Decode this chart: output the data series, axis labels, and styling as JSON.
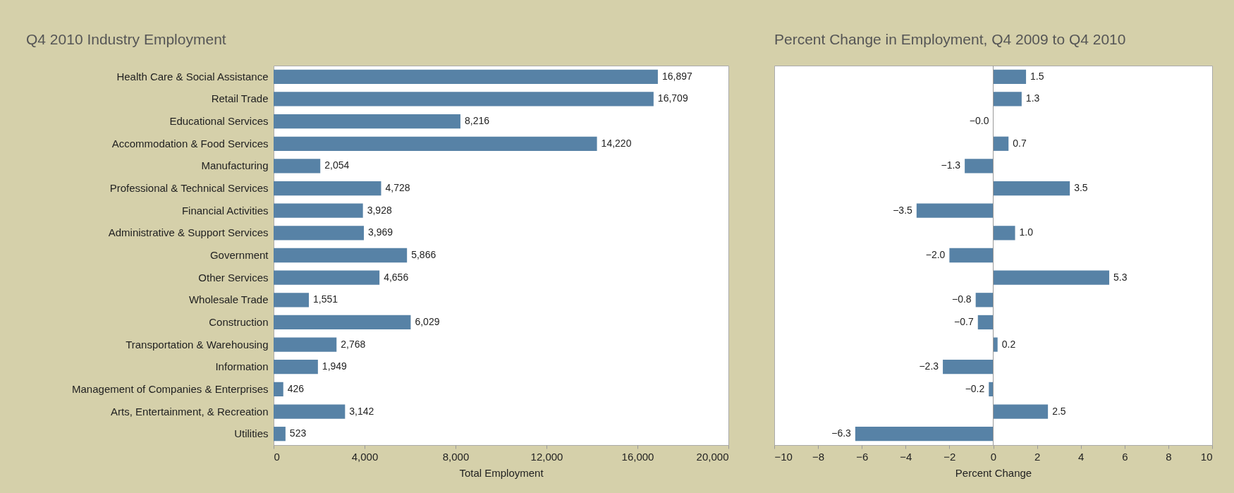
{
  "chart_data": [
    {
      "type": "bar",
      "orientation": "horizontal",
      "title": "Q4 2010 Industry Employment",
      "xlabel": "Total Employment",
      "categories": [
        "Health Care & Social Assistance",
        "Retail Trade",
        "Educational Services",
        "Accommodation & Food Services",
        "Manufacturing",
        "Professional & Technical Services",
        "Financial Activities",
        "Administrative & Support Services",
        "Government",
        "Other Services",
        "Wholesale Trade",
        "Construction",
        "Transportation & Warehousing",
        "Information",
        "Management of Companies & Enterprises",
        "Arts, Entertainment, & Recreation",
        "Utilities"
      ],
      "values": [
        16897,
        16709,
        8216,
        14220,
        2054,
        4728,
        3928,
        3969,
        5866,
        4656,
        1551,
        6029,
        2768,
        1949,
        426,
        3142,
        523
      ],
      "value_labels": [
        "16,897",
        "16,709",
        "8,216",
        "14,220",
        "2,054",
        "4,728",
        "3,928",
        "3,969",
        "5,866",
        "4,656",
        "1,551",
        "6,029",
        "2,768",
        "1,949",
        "426",
        "3,142",
        "523"
      ],
      "color": "#5782a6",
      "xlim": [
        0,
        20000
      ],
      "xticks": [
        0,
        {
          "value": 4000,
          "label": "4,000"
        },
        {
          "value": 8000,
          "label": "8,000"
        },
        {
          "value": 12000,
          "label": "12,000"
        },
        {
          "value": 16000,
          "label": "16,000"
        },
        {
          "value": 20000,
          "label": "20,000"
        }
      ]
    },
    {
      "type": "bar",
      "orientation": "horizontal",
      "title": "Percent Change in Employment, Q4 2009 to Q4 2010",
      "xlabel": "Percent Change",
      "categories": [
        null,
        null,
        null,
        null,
        null,
        null,
        null,
        null,
        null,
        null,
        null,
        null,
        null,
        null,
        null,
        null,
        null
      ],
      "values": [
        1.5,
        1.3,
        -0.0,
        0.7,
        -1.3,
        3.5,
        -3.5,
        1.0,
        -2.0,
        5.3,
        -0.8,
        -0.7,
        0.2,
        -2.3,
        -0.2,
        2.5,
        -6.3
      ],
      "value_labels": [
        "1.5",
        "1.3",
        "−0.0",
        "0.7",
        "−1.3",
        "3.5",
        "−3.5",
        "1.0",
        "−2.0",
        "5.3",
        "−0.8",
        "−0.7",
        "0.2",
        "−2.3",
        "−0.2",
        "2.5",
        "−6.3"
      ],
      "color": "#5782a6",
      "xlim": [
        -10,
        10
      ],
      "xticks": [
        -10,
        -8,
        -6,
        -4,
        -2,
        0,
        2,
        4,
        6,
        8,
        10
      ],
      "tick_labels": "x",
      "ref_lines": [
        {
          "axis": "x",
          "value": 0,
          "color": "#999999"
        }
      ]
    }
  ]
}
